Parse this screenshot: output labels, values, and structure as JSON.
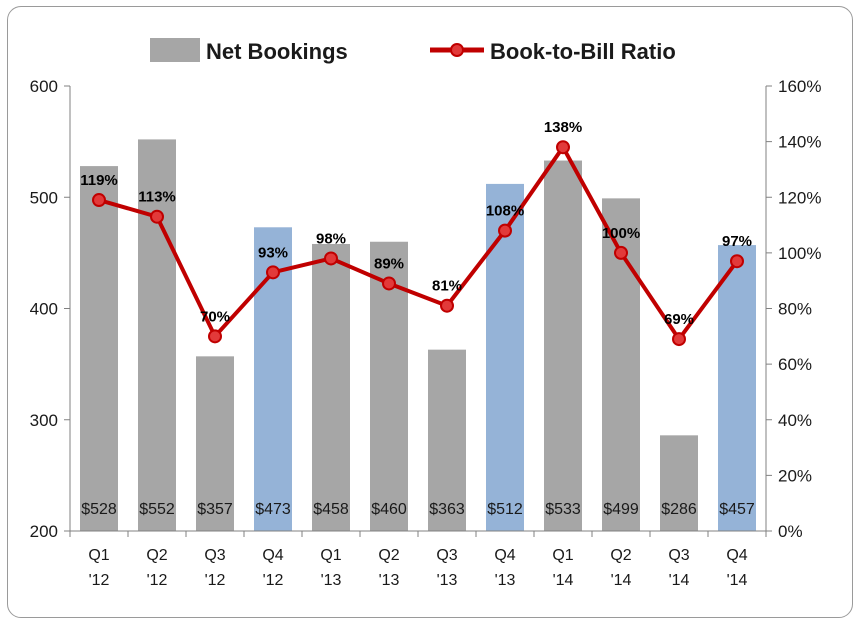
{
  "chart_data": {
    "type": "bar",
    "categories": [
      "Q1 '12",
      "Q2 '12",
      "Q3 '12",
      "Q4 '12",
      "Q1 '13",
      "Q2 '13",
      "Q3 '13",
      "Q4 '13",
      "Q1 '14",
      "Q2 '14",
      "Q3 '14",
      "Q4 '14"
    ],
    "x_labels": [
      [
        "Q1",
        "'12"
      ],
      [
        "Q2",
        "'12"
      ],
      [
        "Q3",
        "'12"
      ],
      [
        "Q4",
        "'12"
      ],
      [
        "Q1",
        "'13"
      ],
      [
        "Q2",
        "'13"
      ],
      [
        "Q3",
        "'13"
      ],
      [
        "Q4",
        "'13"
      ],
      [
        "Q1",
        "'14"
      ],
      [
        "Q2",
        "'14"
      ],
      [
        "Q3",
        "'14"
      ],
      [
        "Q4",
        "'14"
      ]
    ],
    "series": [
      {
        "name": "Net Bookings",
        "type": "bar",
        "axis": "left",
        "values": [
          528,
          552,
          357,
          473,
          458,
          460,
          363,
          512,
          533,
          499,
          286,
          457
        ],
        "labels": [
          "$528",
          "$552",
          "$357",
          "$473",
          "$458",
          "$460",
          "$363",
          "$512",
          "$533",
          "$499",
          "$286",
          "$457"
        ],
        "colors": [
          "#a6a6a6",
          "#a6a6a6",
          "#a6a6a6",
          "#95b3d7",
          "#a6a6a6",
          "#a6a6a6",
          "#a6a6a6",
          "#95b3d7",
          "#a6a6a6",
          "#a6a6a6",
          "#a6a6a6",
          "#95b3d7"
        ]
      },
      {
        "name": "Book-to-Bill Ratio",
        "type": "line",
        "axis": "right",
        "values": [
          119,
          113,
          70,
          93,
          98,
          89,
          81,
          108,
          138,
          100,
          69,
          97
        ],
        "labels": [
          "119%",
          "113%",
          "70%",
          "93%",
          "98%",
          "89%",
          "81%",
          "108%",
          "138%",
          "100%",
          "69%",
          "97%"
        ],
        "color": "#c00000",
        "marker_color": "#e23a3a"
      }
    ],
    "y_left": {
      "ylim": [
        200,
        600
      ],
      "ticks": [
        "200",
        "300",
        "400",
        "500",
        "600"
      ]
    },
    "y_right": {
      "ylim": [
        0,
        160
      ],
      "ticks": [
        "0%",
        "20%",
        "40%",
        "60%",
        "80%",
        "100%",
        "120%",
        "140%",
        "160%"
      ]
    },
    "legend": {
      "position": "top"
    },
    "grid": false
  }
}
